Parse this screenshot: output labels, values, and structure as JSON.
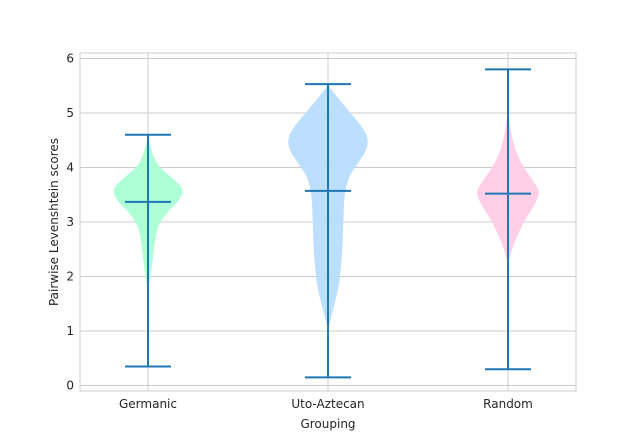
{
  "chart_data": {
    "type": "violin",
    "title": "",
    "xlabel": "Grouping",
    "ylabel": "Pairwise Levenshtein scores",
    "ylim": [
      -0.1,
      6.1
    ],
    "yticks": [
      0,
      1,
      2,
      3,
      4,
      5,
      6
    ],
    "grid": true,
    "categories": [
      "Germanic",
      "Uto-Aztecan",
      "Random"
    ],
    "colors": [
      "#aaffd4",
      "#b8dcff",
      "#ffcce6"
    ],
    "line_color": "#1f77b4",
    "violins": [
      {
        "name": "Germanic",
        "min": 0.35,
        "max": 4.6,
        "median": 3.37,
        "profile": [
          [
            1.5,
            0.0
          ],
          [
            1.8,
            0.02
          ],
          [
            2.0,
            0.05
          ],
          [
            2.2,
            0.09
          ],
          [
            2.5,
            0.13
          ],
          [
            2.8,
            0.18
          ],
          [
            3.0,
            0.27
          ],
          [
            3.2,
            0.45
          ],
          [
            3.4,
            0.7
          ],
          [
            3.6,
            0.8
          ],
          [
            3.8,
            0.55
          ],
          [
            4.0,
            0.25
          ],
          [
            4.2,
            0.12
          ],
          [
            4.4,
            0.05
          ],
          [
            4.55,
            0.0
          ]
        ]
      },
      {
        "name": "Uto-Aztecan",
        "min": 0.15,
        "max": 5.53,
        "median": 3.57,
        "profile": [
          [
            1.0,
            0.0
          ],
          [
            1.2,
            0.05
          ],
          [
            1.5,
            0.15
          ],
          [
            1.8,
            0.23
          ],
          [
            2.0,
            0.27
          ],
          [
            2.5,
            0.32
          ],
          [
            3.0,
            0.34
          ],
          [
            3.5,
            0.36
          ],
          [
            3.8,
            0.45
          ],
          [
            4.0,
            0.6
          ],
          [
            4.3,
            0.85
          ],
          [
            4.5,
            0.9
          ],
          [
            4.7,
            0.8
          ],
          [
            4.9,
            0.6
          ],
          [
            5.1,
            0.4
          ],
          [
            5.3,
            0.2
          ],
          [
            5.45,
            0.05
          ],
          [
            5.53,
            0.0
          ]
        ]
      },
      {
        "name": "Random",
        "min": 0.3,
        "max": 5.8,
        "median": 3.52,
        "profile": [
          [
            2.2,
            0.0
          ],
          [
            2.4,
            0.05
          ],
          [
            2.7,
            0.18
          ],
          [
            3.0,
            0.35
          ],
          [
            3.3,
            0.58
          ],
          [
            3.5,
            0.7
          ],
          [
            3.6,
            0.68
          ],
          [
            3.8,
            0.52
          ],
          [
            4.0,
            0.35
          ],
          [
            4.2,
            0.22
          ],
          [
            4.5,
            0.1
          ],
          [
            4.8,
            0.04
          ],
          [
            5.0,
            0.0
          ]
        ]
      }
    ]
  }
}
